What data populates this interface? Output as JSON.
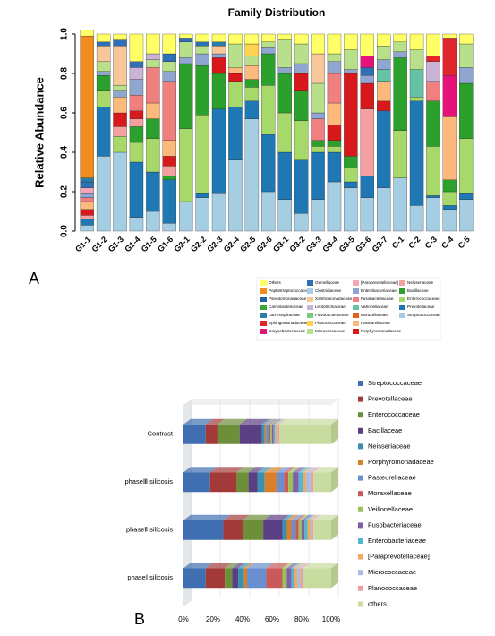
{
  "chart_data": [
    {
      "type": "stacked_bar",
      "panel_label": "A",
      "title": "Family Distribution",
      "y_label": "Relative Abundance",
      "categories": [
        "G1-1",
        "G1-2",
        "G1-3",
        "G1-4",
        "G1-5",
        "G1-6",
        "G2-1",
        "G2-2",
        "G2-3",
        "G2-4",
        "G2-5",
        "G2-6",
        "G3-1",
        "G3-2",
        "G3-3",
        "G3-4",
        "G3-5",
        "G3-6",
        "G3-7",
        "C-1",
        "C-2",
        "C-3",
        "C-4",
        "C-5"
      ],
      "ylim": [
        0,
        1
      ],
      "yticks": [
        {
          "value": 0,
          "label": "0.0"
        },
        0.2,
        0.4,
        0.6,
        0.8,
        {
          "value": 1,
          "label": "1.0"
        }
      ],
      "series": [
        {
          "name": "Others",
          "color": "#ffff66",
          "values": [
            0.03,
            0.04,
            0.03,
            0.14,
            0.1,
            0.1,
            0.02,
            0.04,
            0.04,
            0.05,
            0.05,
            0.04,
            0.03,
            0.05,
            0.1,
            0.1,
            0.08,
            0.11,
            0.06,
            0.04,
            0.08,
            0.11,
            0.02,
            0.05
          ]
        },
        {
          "name": "Peptostreptococcaceae",
          "color": "#f28c1e",
          "values": [
            0.72,
            0,
            0,
            0,
            0,
            0,
            0,
            0,
            0,
            0,
            0,
            0,
            0,
            0,
            0,
            0,
            0,
            0,
            0,
            0,
            0,
            0,
            0,
            0
          ]
        },
        {
          "name": "Pseudomonadaceae",
          "color": "#1f5fa8",
          "values": [
            0,
            0,
            0,
            0,
            0,
            0,
            0,
            0,
            0,
            0,
            0,
            0,
            0,
            0,
            0,
            0,
            0,
            0,
            0,
            0,
            0,
            0,
            0,
            0
          ]
        },
        {
          "name": "Carnobacteriaceae",
          "color": "#3aa832",
          "values": [
            0,
            0,
            0,
            0,
            0,
            0,
            0,
            0,
            0,
            0,
            0,
            0,
            0,
            0,
            0,
            0,
            0,
            0,
            0,
            0,
            0,
            0,
            0,
            0
          ]
        },
        {
          "name": "Lachnospiraceae",
          "color": "#2b7da8",
          "values": [
            0.02,
            0,
            0,
            0,
            0,
            0,
            0,
            0,
            0.02,
            0,
            0,
            0,
            0,
            0,
            0,
            0,
            0,
            0,
            0,
            0,
            0,
            0,
            0,
            0
          ]
        },
        {
          "name": "Sphingomonadaceae",
          "color": "#e0262c",
          "values": [
            0,
            0,
            0,
            0,
            0,
            0,
            0,
            0,
            0,
            0,
            0,
            0,
            0,
            0,
            0,
            0,
            0,
            0,
            0,
            0,
            0,
            0.03,
            0.19,
            0
          ]
        },
        {
          "name": "Corynebacteriaceae",
          "color": "#e6127a",
          "values": [
            0,
            0,
            0,
            0,
            0,
            0,
            0,
            0,
            0,
            0,
            0,
            0,
            0,
            0,
            0,
            0,
            0,
            0.06,
            0,
            0,
            0,
            0,
            0.21,
            0
          ]
        },
        {
          "name": "Gemellaceae",
          "color": "#2e6fb5",
          "values": [
            0.03,
            0.02,
            0.03,
            0.03,
            0,
            0.04,
            0.02,
            0.02,
            0,
            0,
            0,
            0,
            0,
            0,
            0,
            0,
            0,
            0.04,
            0,
            0,
            0,
            0,
            0,
            0
          ]
        },
        {
          "name": "Clostridiaceae",
          "color": "#a9cde8",
          "values": [
            0,
            0,
            0,
            0,
            0,
            0,
            0,
            0,
            0,
            0,
            0,
            0,
            0,
            0,
            0,
            0,
            0,
            0,
            0,
            0,
            0,
            0,
            0,
            0
          ]
        },
        {
          "name": "Xanthomonadaceae",
          "color": "#f7c79a",
          "values": [
            0,
            0.08,
            0.2,
            0,
            0,
            0,
            0,
            0,
            0.04,
            0,
            0,
            0,
            0,
            0,
            0.15,
            0,
            0,
            0,
            0,
            0,
            0,
            0,
            0,
            0
          ]
        },
        {
          "name": "Leptotrichiaceae",
          "color": "#c9b3d6",
          "values": [
            0,
            0,
            0,
            0.06,
            0.03,
            0,
            0,
            0,
            0,
            0,
            0,
            0,
            0,
            0,
            0,
            0,
            0,
            0,
            0,
            0,
            0,
            0.1,
            0,
            0
          ]
        },
        {
          "name": "Flavobacteriaceae",
          "color": "#7fc97f",
          "values": [
            0,
            0,
            0,
            0,
            0,
            0,
            0,
            0,
            0,
            0,
            0,
            0,
            0,
            0,
            0,
            0,
            0,
            0,
            0,
            0,
            0,
            0,
            0,
            0
          ]
        },
        {
          "name": "Planococcaceae",
          "color": "#ffd34d",
          "values": [
            0,
            0,
            0,
            0,
            0,
            0,
            0,
            0,
            0,
            0,
            0.06,
            0,
            0,
            0,
            0,
            0,
            0,
            0,
            0,
            0,
            0,
            0,
            0,
            0
          ]
        },
        {
          "name": "Micrococcaceae",
          "color": "#b8e08a",
          "values": [
            0,
            0.05,
            0.03,
            0,
            0.04,
            0.05,
            0.08,
            0.04,
            0,
            0.12,
            0.05,
            0.03,
            0.14,
            0.1,
            0.15,
            0.04,
            0.1,
            0,
            0.07,
            0.05,
            0.1,
            0,
            0,
            0.12
          ]
        },
        {
          "name": "[Paraprevotellaceae]",
          "color": "#f4a6b7",
          "values": [
            0.03,
            0,
            0,
            0,
            0,
            0,
            0,
            0,
            0,
            0,
            0,
            0,
            0,
            0,
            0,
            0,
            0,
            0,
            0,
            0,
            0,
            0,
            0,
            0
          ]
        },
        {
          "name": "Enterobacteriaceae",
          "color": "#8ea6d0",
          "values": [
            0.02,
            0.02,
            0.03,
            0.08,
            0,
            0.05,
            0.03,
            0.06,
            0.02,
            0,
            0,
            0.03,
            0.03,
            0.05,
            0.03,
            0.06,
            0.02,
            0.04,
            0.05,
            0.03,
            0,
            0,
            0,
            0.08
          ]
        },
        {
          "name": "Fusobacteriaceae",
          "color": "#f08080",
          "values": [
            0.02,
            0,
            0,
            0.08,
            0.18,
            0.3,
            0,
            0,
            0,
            0,
            0,
            0,
            0,
            0,
            0.11,
            0.15,
            0,
            0,
            0,
            0,
            0,
            0.1,
            0,
            0
          ]
        },
        {
          "name": "Veillonellaceae",
          "color": "#66c2a5",
          "values": [
            0,
            0,
            0,
            0,
            0,
            0,
            0,
            0,
            0,
            0,
            0,
            0,
            0,
            0,
            0,
            0,
            0,
            0,
            0.06,
            0,
            0.14,
            0,
            0,
            0
          ]
        },
        {
          "name": "Moraxellaceae",
          "color": "#e8621d",
          "values": [
            0,
            0,
            0,
            0,
            0,
            0,
            0,
            0,
            0,
            0,
            0,
            0,
            0,
            0,
            0,
            0,
            0,
            0,
            0,
            0,
            0,
            0,
            0,
            0
          ]
        },
        {
          "name": "Pasteurellaceae",
          "color": "#fbb97c",
          "values": [
            0.04,
            0,
            0.08,
            0,
            0.08,
            0.08,
            0,
            0,
            0,
            0.03,
            0.07,
            0,
            0,
            0,
            0,
            0.11,
            0,
            0,
            0.1,
            0,
            0,
            0,
            0.32,
            0
          ]
        },
        {
          "name": "Porphyromonadaceae",
          "color": "#d7191c",
          "values": [
            0.03,
            0,
            0.07,
            0.04,
            0,
            0.05,
            0,
            0,
            0.08,
            0.04,
            0,
            0,
            0,
            0.09,
            0,
            0.08,
            0.42,
            0.13,
            0.05,
            0,
            0,
            0,
            0,
            0
          ]
        },
        {
          "name": "Neisseriaceae",
          "color": "#f4a0a0",
          "values": [
            0.02,
            0,
            0.05,
            0.04,
            0,
            0.05,
            0,
            0,
            0,
            0,
            0,
            0,
            0,
            0,
            0,
            0,
            0,
            0.34,
            0,
            0,
            0,
            0,
            0,
            0
          ]
        },
        {
          "name": "Bacillaceae",
          "color": "#2ca02c",
          "values": [
            0,
            0.08,
            0,
            0.08,
            0.1,
            0.02,
            0.33,
            0.25,
            0.18,
            0,
            0.04,
            0.16,
            0.2,
            0.15,
            0.03,
            0.03,
            0.06,
            0,
            0,
            0.37,
            0,
            0.23,
            0.06,
            0.28
          ]
        },
        {
          "name": "Enterococcaceae",
          "color": "#a6d96a",
          "values": [
            0,
            0.08,
            0.08,
            0.1,
            0.17,
            0,
            0.37,
            0.4,
            0,
            0.13,
            0.07,
            0.25,
            0.2,
            0.2,
            0.03,
            0.03,
            0.07,
            0,
            0,
            0.24,
            0.02,
            0.25,
            0.07,
            0.28
          ]
        },
        {
          "name": "Prevotellaceae",
          "color": "#1f77b4",
          "values": [
            0.03,
            0.25,
            0,
            0.28,
            0.2,
            0.22,
            0,
            0.02,
            0.43,
            0.27,
            0.09,
            0.29,
            0.24,
            0.27,
            0.24,
            0.15,
            0.03,
            0.11,
            0.39,
            0,
            0.53,
            0.01,
            0.02,
            0.03
          ]
        },
        {
          "name": "Streptococcaceae",
          "color": "#a6cee3",
          "values": [
            0.03,
            0.38,
            0.4,
            0.07,
            0.1,
            0.04,
            0.15,
            0.17,
            0.19,
            0.36,
            0.57,
            0.2,
            0.16,
            0.09,
            0.16,
            0.25,
            0.22,
            0.17,
            0.22,
            0.27,
            0.13,
            0.17,
            0.11,
            0.16
          ]
        }
      ]
    },
    {
      "type": "stacked_barh",
      "panel_label": "B",
      "categories": [
        "Contrast",
        "phaseⅢ silicosis",
        "phaseⅡ silicosis",
        "phaseⅠ silicosis"
      ],
      "xlim": [
        0,
        100
      ],
      "xticks": [
        {
          "value": 0,
          "label": "0%"
        },
        {
          "value": 20,
          "label": "20%"
        },
        {
          "value": 40,
          "label": "40%"
        },
        {
          "value": 60,
          "label": "60%"
        },
        {
          "value": 80,
          "label": "80%"
        },
        {
          "value": 100,
          "label": "100%"
        }
      ],
      "series": [
        {
          "name": "Streptococcaceae",
          "color": "#3f6fb0",
          "values": [
            15,
            18,
            27,
            15
          ]
        },
        {
          "name": "Prevotellaceae",
          "color": "#a33a3a",
          "values": [
            8,
            18,
            13,
            13
          ]
        },
        {
          "name": "Enterococcaceae",
          "color": "#6e8f3a",
          "values": [
            15,
            8,
            14,
            5
          ]
        },
        {
          "name": "Bacillaceae",
          "color": "#5a3f84",
          "values": [
            15,
            6,
            13,
            4
          ]
        },
        {
          "name": "Neisseriaceae",
          "color": "#3a91ad",
          "values": [
            2,
            5,
            3,
            4
          ]
        },
        {
          "name": "Porphyromonadaceae",
          "color": "#d97f2a",
          "values": [
            1,
            8,
            3,
            2
          ]
        },
        {
          "name": "Pasteurellaceae",
          "color": "#6a8fd0",
          "values": [
            2,
            5,
            3,
            13
          ]
        },
        {
          "name": "Moraxellaceae",
          "color": "#c85a5a",
          "values": [
            1,
            3,
            2,
            11
          ]
        },
        {
          "name": "Veillonellaceae",
          "color": "#9bc25a",
          "values": [
            1,
            3,
            2,
            3
          ]
        },
        {
          "name": "Fusobacteriaceae",
          "color": "#7f5fa8",
          "values": [
            1,
            4,
            2,
            3
          ]
        },
        {
          "name": "Enterobacteriaceae",
          "color": "#4fb7cf",
          "values": [
            1,
            3,
            2,
            2
          ]
        },
        {
          "name": "[Paraprevotellaceae]",
          "color": "#f2a860",
          "values": [
            1,
            2,
            2,
            2
          ]
        },
        {
          "name": "Micrococcaceae",
          "color": "#a8bde0",
          "values": [
            1,
            3,
            1,
            2
          ]
        },
        {
          "name": "Planococcaceae",
          "color": "#e8a0a0",
          "values": [
            1,
            2,
            1,
            2
          ]
        },
        {
          "name": "others",
          "color": "#c8dca0",
          "values": [
            35,
            12,
            12,
            19
          ]
        }
      ]
    }
  ]
}
